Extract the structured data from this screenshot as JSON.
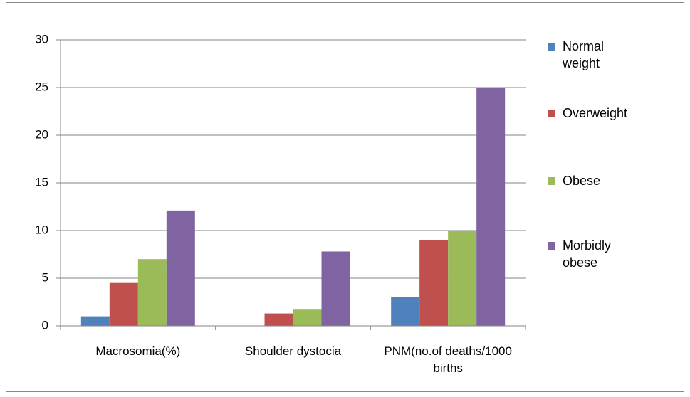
{
  "chart_data": {
    "type": "bar",
    "categories": [
      "Macrosomia(%)",
      "Shoulder dystocia",
      "PNM(no.of deaths/1000 births"
    ],
    "series": [
      {
        "name": "Normal weight",
        "color": "#4f81bd",
        "values": [
          1,
          0,
          3
        ]
      },
      {
        "name": "Overweight",
        "color": "#c0504d",
        "values": [
          4.5,
          1.3,
          9
        ]
      },
      {
        "name": "Obese",
        "color": "#9bbb59",
        "values": [
          7,
          1.7,
          10
        ]
      },
      {
        "name": "Morbidly obese",
        "color": "#8064a2",
        "values": [
          12.1,
          7.8,
          25
        ]
      }
    ],
    "ylim": [
      0,
      30
    ],
    "yticks": [
      0,
      5,
      10,
      15,
      20,
      25,
      30
    ],
    "grid": true,
    "legend": "right"
  }
}
